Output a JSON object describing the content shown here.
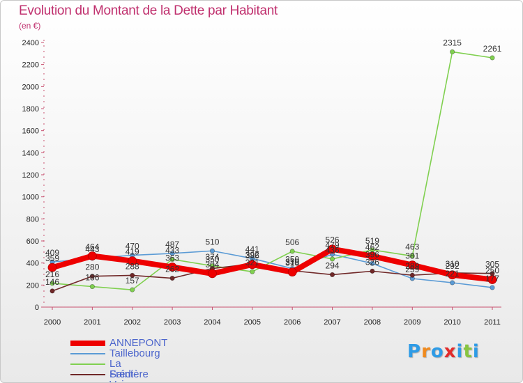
{
  "title": "Evolution du Montant de la Dette par Habitant",
  "subtitle": "(en €)",
  "chart_data": {
    "type": "line",
    "title": "Evolution du Montant de la Dette par Habitant",
    "subtitle": "(en €)",
    "x": [
      "2000",
      "2001",
      "2002",
      "2003",
      "2004",
      "2005",
      "2006",
      "2007",
      "2008",
      "2009",
      "2010",
      "2011"
    ],
    "ylim": [
      0,
      2400
    ],
    "yticks": [
      0,
      200,
      400,
      600,
      800,
      1000,
      1200,
      1400,
      1600,
      1800,
      2000,
      2200,
      2400
    ],
    "grid": false,
    "legend_position": "bottom-left",
    "series": [
      {
        "name": "ANNEPONT",
        "color": "#ee0000",
        "values": [
          359,
          464,
          419,
          363,
          304,
          386,
          318,
          526,
          462,
          381,
          292,
          250
        ]
      },
      {
        "name": "Taillebourg",
        "color": "#5b9bd5",
        "values": [
          409,
          443,
          470,
          487,
          510,
          441,
          350,
          479,
          396,
          259,
          221,
          177
        ]
      },
      {
        "name": "La Frédière",
        "color": "#80d050",
        "values": [
          216,
          186,
          157,
          433,
          374,
          321,
          506,
          436,
          519,
          463,
          2315,
          2261
        ]
      },
      {
        "name": "Saint-Vaize",
        "color": "#702828",
        "values": [
          146,
          280,
          288,
          262,
          350,
          392,
          330,
          294,
          326,
          289,
          310,
          305
        ]
      }
    ],
    "data_labels": [
      [
        "359",
        "464",
        "419",
        "363",
        "304",
        "386",
        "318",
        "526",
        "462",
        "381",
        "292",
        "250"
      ],
      [
        "409",
        "443",
        "470",
        "487",
        "510",
        "441",
        "350",
        "479",
        "396",
        "259",
        "221",
        "177"
      ],
      [
        "216",
        "186",
        "157",
        "433",
        "374",
        "321",
        "506",
        "436",
        "519",
        "463",
        "2315",
        "2261"
      ],
      [
        "146",
        "280",
        "288",
        "262",
        "350",
        "392",
        "330",
        "294",
        "326",
        "289",
        "310",
        "305"
      ]
    ]
  },
  "logo": {
    "text": "Proxiti",
    "colors": [
      "#2e9be6",
      "#f08a1e",
      "#2e9be6",
      "#e22b2b",
      "#2e9be6",
      "#88c540",
      "#2e9be6"
    ]
  }
}
